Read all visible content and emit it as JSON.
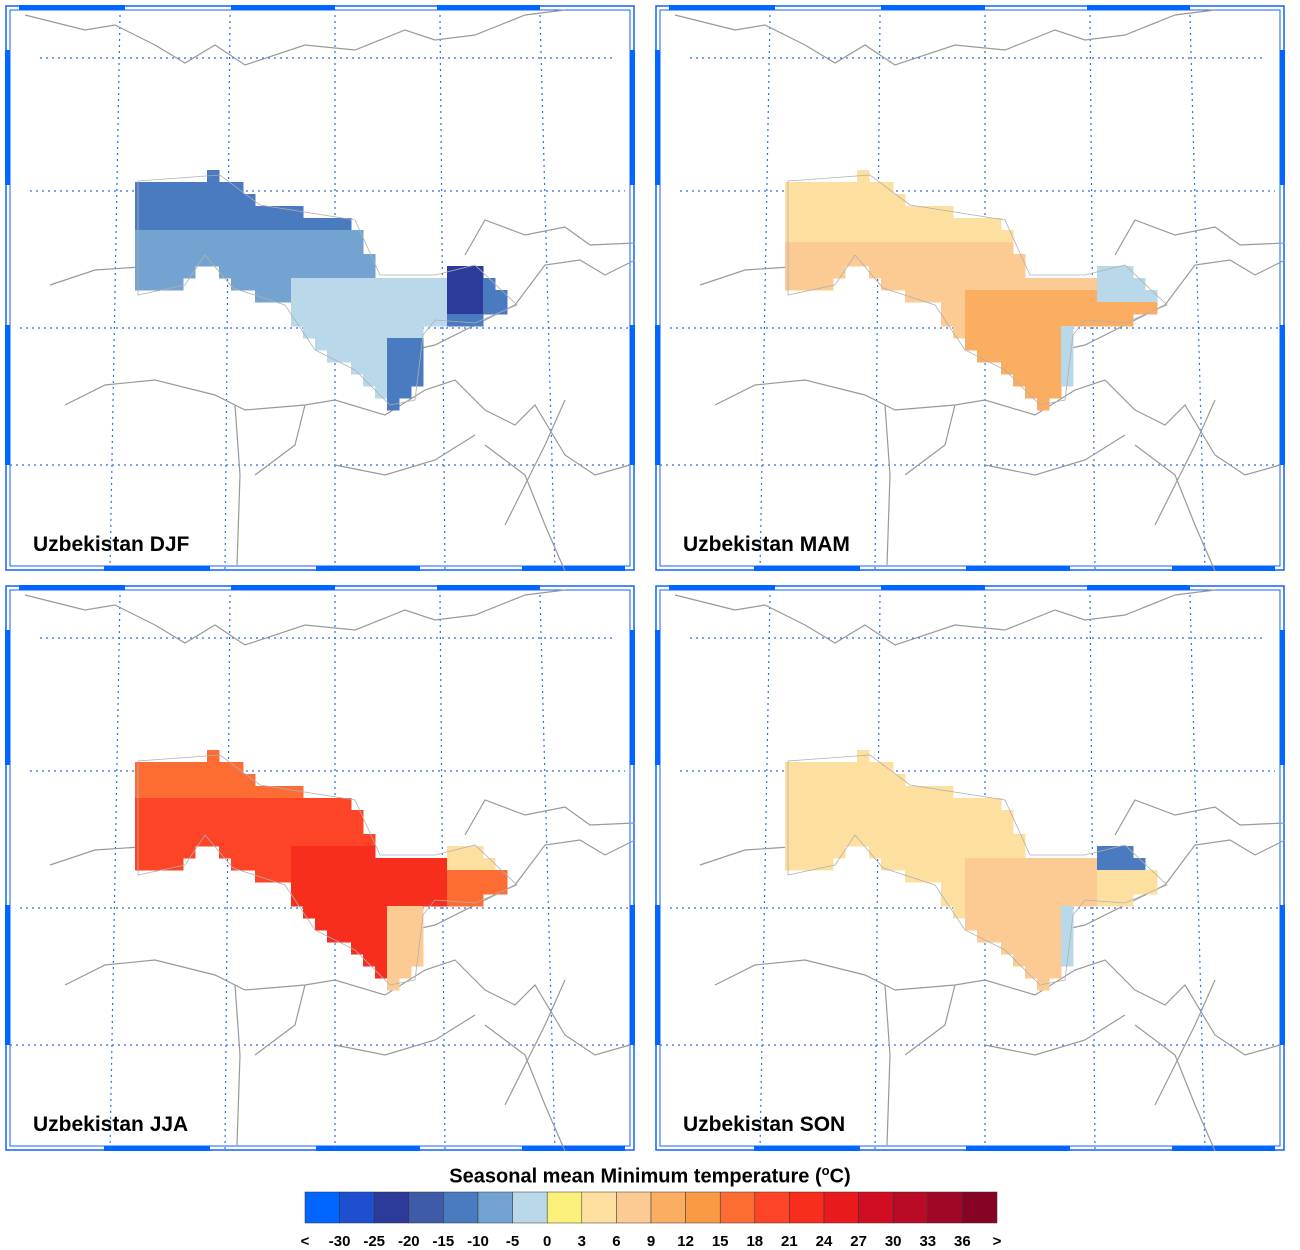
{
  "colorbar": {
    "title_prefix": "Seasonal mean Minimum temperature (",
    "title_sup": "o",
    "title_suffix": "C)",
    "ticks": [
      "<",
      "-30",
      "-25",
      "-20",
      "-15",
      "-10",
      "-5",
      "0",
      "3",
      "6",
      "9",
      "12",
      "15",
      "18",
      "21",
      "24",
      "27",
      "30",
      "33",
      "36",
      ">"
    ],
    "colors": [
      "#0066ff",
      "#1f4fd1",
      "#2c3a9a",
      "#3f5aa8",
      "#4a7bc0",
      "#73a3d0",
      "#b9d8ea",
      "#fbf07a",
      "#fde0a0",
      "#fccb94",
      "#fbad62",
      "#fb9a45",
      "#fd6d33",
      "#fd4426",
      "#f72d1e",
      "#e81a1c",
      "#d10d24",
      "#b90a26",
      "#a00726",
      "#870325"
    ]
  },
  "panels": [
    {
      "label": "Uzbekistan DJF",
      "season": "DJF"
    },
    {
      "label": "Uzbekistan MAM",
      "season": "MAM"
    },
    {
      "label": "Uzbekistan JJA",
      "season": "JJA"
    },
    {
      "label": "Uzbekistan SON",
      "season": "SON"
    }
  ]
}
